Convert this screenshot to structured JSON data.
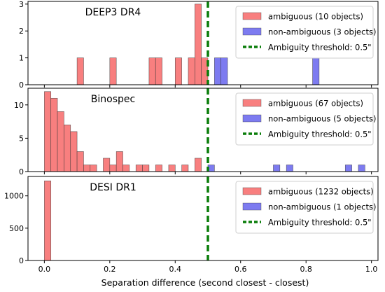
{
  "figure": {
    "xlabel": "Separation difference (second closest - closest)",
    "x_ticks": [
      "0.0",
      "0.2",
      "0.4",
      "0.6",
      "0.8",
      "1.0"
    ]
  },
  "colors": {
    "ambiguous": "#f87f7f",
    "non_ambiguous": "#7d7bf0",
    "threshold": "#0a7d0a"
  },
  "chart_data": [
    {
      "type": "bar",
      "title": "DEEP3 DR4",
      "xlim": [
        -0.05,
        1.02
      ],
      "ylim": [
        0,
        3.1
      ],
      "y_ticks": [
        0,
        1,
        2,
        3
      ],
      "threshold": 0.5,
      "bin_width": 0.02,
      "series": [
        {
          "name": "ambiguous (10 objects)",
          "kind": "ambiguous",
          "x": [
            0.11,
            0.21,
            0.33,
            0.35,
            0.41,
            0.45,
            0.47,
            0.49
          ],
          "values": [
            1,
            1,
            1,
            1,
            1,
            1,
            3,
            1
          ]
        },
        {
          "name": "non-ambiguous (3 objects)",
          "kind": "non_ambiguous",
          "x": [
            0.53,
            0.55,
            0.83
          ],
          "values": [
            1,
            1,
            1
          ]
        }
      ],
      "threshold_label": "Ambiguity threshold: 0.5\""
    },
    {
      "type": "bar",
      "title": "Binospec",
      "xlim": [
        -0.05,
        1.02
      ],
      "ylim": [
        0,
        12.5
      ],
      "y_ticks": [
        0,
        5,
        10
      ],
      "threshold": 0.5,
      "bin_width": 0.02,
      "series": [
        {
          "name": "ambiguous (67 objects)",
          "kind": "ambiguous",
          "x": [
            0.01,
            0.03,
            0.05,
            0.07,
            0.09,
            0.11,
            0.13,
            0.15,
            0.19,
            0.21,
            0.23,
            0.25,
            0.29,
            0.31,
            0.35,
            0.39,
            0.43,
            0.47
          ],
          "values": [
            12,
            11,
            9,
            7,
            6,
            3,
            1,
            1,
            2,
            1,
            3,
            1,
            1,
            1,
            1,
            1,
            1,
            2
          ]
        },
        {
          "name": "non-ambiguous (5 objects)",
          "kind": "non_ambiguous",
          "x": [
            0.51,
            0.71,
            0.75,
            0.93,
            0.97
          ],
          "values": [
            1,
            1,
            1,
            1,
            1
          ]
        }
      ],
      "threshold_label": "Ambiguity threshold: 0.5\""
    },
    {
      "type": "bar",
      "title": "DESI DR1",
      "xlim": [
        -0.05,
        1.02
      ],
      "ylim": [
        0,
        1300
      ],
      "y_ticks": [
        0,
        500,
        1000
      ],
      "threshold": 0.5,
      "bin_width": 0.02,
      "series": [
        {
          "name": "ambiguous (1232 objects)",
          "kind": "ambiguous",
          "x": [
            0.01
          ],
          "values": [
            1232
          ]
        },
        {
          "name": "non-ambiguous (1 objects)",
          "kind": "non_ambiguous",
          "x": [
            0.51
          ],
          "values": [
            1
          ]
        }
      ],
      "threshold_label": "Ambiguity threshold: 0.5\""
    }
  ]
}
